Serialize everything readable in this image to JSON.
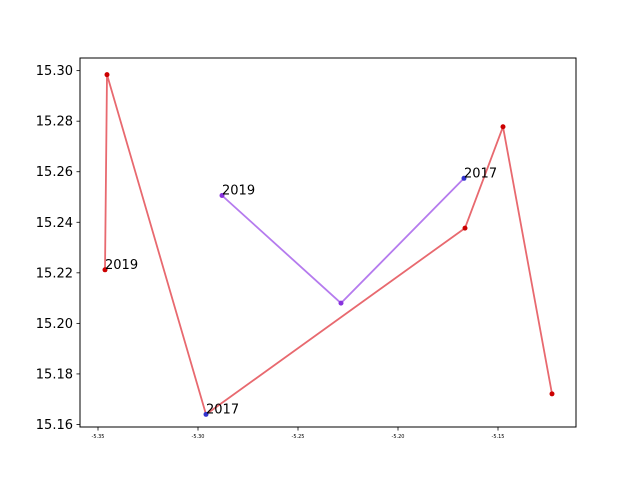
{
  "chart_data": {
    "type": "line",
    "title": "",
    "xlabel": "",
    "ylabel": "",
    "xlim": [
      -5.359,
      -5.111
    ],
    "ylim": [
      15.159,
      15.305
    ],
    "x_ticks": [
      -5.35,
      -5.3,
      -5.25,
      -5.2,
      -5.15
    ],
    "x_tick_labels": [
      "-5.35",
      "-5.30",
      "-5.25",
      "-5.20",
      "-5.15"
    ],
    "y_ticks": [
      15.16,
      15.18,
      15.2,
      15.22,
      15.24,
      15.26,
      15.28,
      15.3
    ],
    "y_tick_labels": [
      "15.16",
      "15.18",
      "15.20",
      "15.22",
      "15.24",
      "15.26",
      "15.28",
      "15.30"
    ],
    "grid": false,
    "series": [
      {
        "color": "#e8696f",
        "marker_colors": [
          "#cc0000",
          "#cc0000",
          "#3333cc",
          "#cc0000",
          "#cc0000",
          "#cc0000"
        ],
        "points": [
          {
            "x": -5.3465,
            "y": 15.2212,
            "label": "2019"
          },
          {
            "x": -5.3455,
            "y": 15.2984,
            "label": ""
          },
          {
            "x": -5.296,
            "y": 15.164,
            "label": "2017"
          },
          {
            "x": -5.1665,
            "y": 15.2377,
            "label": ""
          },
          {
            "x": -5.1475,
            "y": 15.2778,
            "label": ""
          },
          {
            "x": -5.123,
            "y": 15.1721,
            "label": ""
          }
        ]
      },
      {
        "color": "#b57bee",
        "marker_colors": [
          "#8833dd",
          "#8833dd",
          "#3333cc"
        ],
        "points": [
          {
            "x": -5.288,
            "y": 15.2506,
            "label": "2019"
          },
          {
            "x": -5.2285,
            "y": 15.208,
            "label": ""
          },
          {
            "x": -5.167,
            "y": 15.2574,
            "label": "2017"
          }
        ]
      }
    ]
  }
}
